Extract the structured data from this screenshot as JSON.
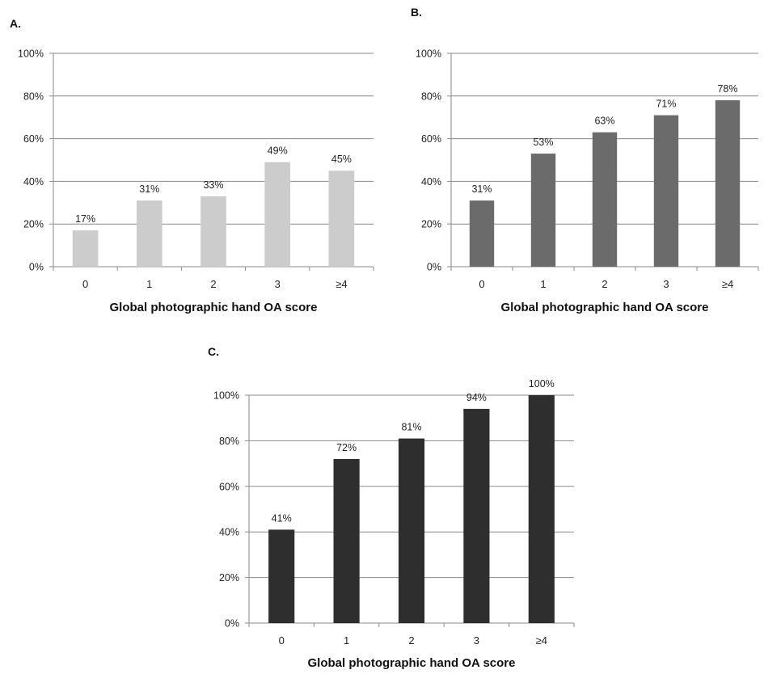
{
  "chart_data": [
    {
      "type": "bar",
      "panel_label": "A.",
      "categories": [
        "0",
        "1",
        "2",
        "3",
        "≥4"
      ],
      "values": [
        17,
        31,
        33,
        49,
        45
      ],
      "data_labels": [
        "17%",
        "31%",
        "33%",
        "49%",
        "45%"
      ],
      "xlabel": "Global photographic hand OA score",
      "ylabel": "",
      "ylim": [
        0,
        100
      ],
      "yticks": [
        "0%",
        "20%",
        "40%",
        "60%",
        "80%",
        "100%"
      ],
      "grid": true,
      "bar_color": "#cccccc"
    },
    {
      "type": "bar",
      "panel_label": "B.",
      "categories": [
        "0",
        "1",
        "2",
        "3",
        "≥4"
      ],
      "values": [
        31,
        53,
        63,
        71,
        78
      ],
      "data_labels": [
        "31%",
        "53%",
        "63%",
        "71%",
        "78%"
      ],
      "xlabel": "Global photographic hand OA score",
      "ylabel": "",
      "ylim": [
        0,
        100
      ],
      "yticks": [
        "0%",
        "20%",
        "40%",
        "60%",
        "80%",
        "100%"
      ],
      "grid": true,
      "bar_color": "#6b6b6b"
    },
    {
      "type": "bar",
      "panel_label": "C.",
      "categories": [
        "0",
        "1",
        "2",
        "3",
        "≥4"
      ],
      "values": [
        41,
        72,
        81,
        94,
        100
      ],
      "data_labels": [
        "41%",
        "72%",
        "81%",
        "94%",
        "100%"
      ],
      "xlabel": "Global photographic hand OA score",
      "ylabel": "",
      "ylim": [
        0,
        100
      ],
      "yticks": [
        "0%",
        "20%",
        "40%",
        "60%",
        "80%",
        "100%"
      ],
      "grid": true,
      "bar_color": "#2e2e2e"
    }
  ]
}
